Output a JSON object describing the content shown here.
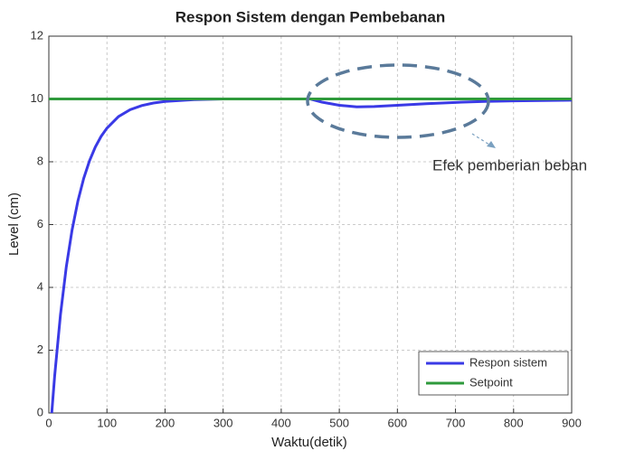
{
  "chart_data": {
    "type": "line",
    "title": "Respon Sistem dengan Pembebanan",
    "x_label": "Waktu(detik)",
    "y_label": "Level (cm)",
    "annotation": "Efek pemberian beban",
    "xlim": [
      0,
      900
    ],
    "xticks": [
      0,
      100,
      200,
      300,
      400,
      500,
      600,
      700,
      800,
      900
    ],
    "ylim": [
      0,
      12
    ],
    "yticks": [
      0,
      2,
      4,
      6,
      8,
      10,
      12
    ],
    "grid": true,
    "legend": "lower right",
    "series": [
      {
        "name": "Respon sistem",
        "color": "#3a3ae6",
        "x": [
          5,
          10,
          20,
          30,
          40,
          50,
          60,
          70,
          80,
          90,
          100,
          120,
          140,
          160,
          180,
          200,
          250,
          300,
          350,
          400,
          450,
          470,
          500,
          530,
          560,
          600,
          650,
          700,
          750,
          800,
          850,
          900
        ],
        "values": [
          0,
          1.18,
          3.13,
          4.65,
          5.83,
          6.75,
          7.47,
          8.03,
          8.47,
          8.81,
          9.07,
          9.44,
          9.66,
          9.79,
          9.87,
          9.92,
          9.98,
          10,
          10,
          10,
          10,
          9.9,
          9.8,
          9.75,
          9.76,
          9.8,
          9.85,
          9.89,
          9.92,
          9.94,
          9.95,
          9.96
        ]
      },
      {
        "name": "Setpoint",
        "color": "#2f9a3c",
        "x": [
          0,
          900
        ],
        "values": [
          10,
          10
        ]
      }
    ]
  }
}
